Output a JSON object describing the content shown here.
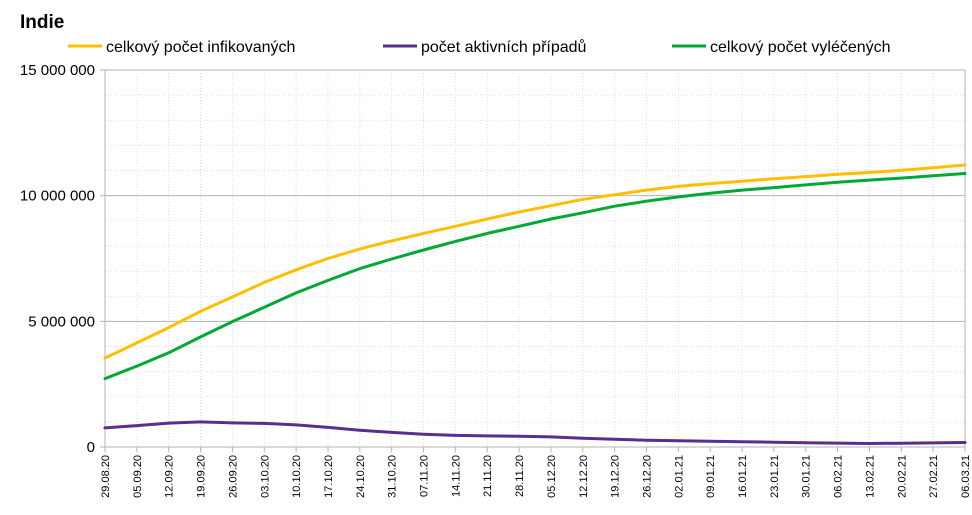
{
  "chart_data": {
    "type": "line",
    "title": "Indie",
    "xlabel": "",
    "ylabel": "",
    "legend_position": "top",
    "grid": true,
    "ylim": [
      0,
      15000000
    ],
    "y_ticks": [
      0,
      5000000,
      10000000,
      15000000
    ],
    "y_tick_labels": [
      "0",
      "5 000 000",
      "10 000 000",
      "15 000 000"
    ],
    "x_tick_labels": [
      "29.08.20",
      "05.09.20",
      "12.09.20",
      "19.09.20",
      "26.09.20",
      "03.10.20",
      "10.10.20",
      "17.10.20",
      "24.10.20",
      "31.10.20",
      "07.11.20",
      "14.11.20",
      "21.11.20",
      "28.11.20",
      "05.12.20",
      "12.12.20",
      "19.12.20",
      "26.12.20",
      "02.01.21",
      "09.01.21",
      "16.01.21",
      "23.01.21",
      "30.01.21",
      "06.02.21",
      "13.02.21",
      "20.02.21",
      "27.02.21",
      "06.03.21"
    ],
    "series": [
      {
        "name": "celkový počet infikovaných",
        "color": "#ffbf00",
        "values": [
          3540000,
          4140000,
          4750000,
          5400000,
          5970000,
          6550000,
          7050000,
          7500000,
          7880000,
          8200000,
          8500000,
          8780000,
          9070000,
          9350000,
          9600000,
          9850000,
          10040000,
          10220000,
          10370000,
          10480000,
          10570000,
          10670000,
          10760000,
          10850000,
          10920000,
          11010000,
          11110000,
          11220000
        ]
      },
      {
        "name": "počet aktivních případů",
        "color": "#5a2d91",
        "values": [
          760000,
          850000,
          950000,
          1000000,
          960000,
          940000,
          880000,
          780000,
          670000,
          580000,
          510000,
          460000,
          440000,
          430000,
          400000,
          350000,
          310000,
          270000,
          250000,
          230000,
          210000,
          190000,
          170000,
          155000,
          140000,
          150000,
          165000,
          180000
        ]
      },
      {
        "name": "celkový počet vyléčených",
        "color": "#00a933",
        "values": [
          2720000,
          3220000,
          3750000,
          4380000,
          4990000,
          5560000,
          6130000,
          6630000,
          7100000,
          7480000,
          7840000,
          8180000,
          8500000,
          8780000,
          9070000,
          9320000,
          9580000,
          9780000,
          9950000,
          10100000,
          10220000,
          10320000,
          10430000,
          10530000,
          10620000,
          10700000,
          10790000,
          10880000
        ]
      }
    ]
  }
}
